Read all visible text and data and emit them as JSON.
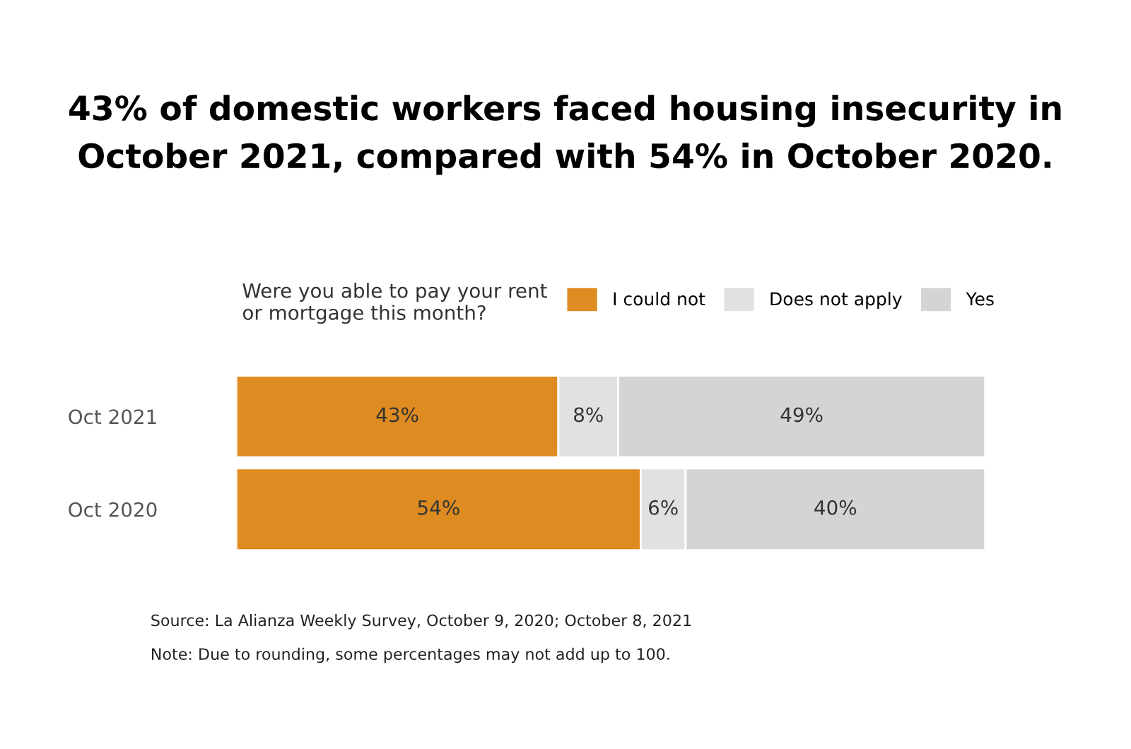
{
  "chart_data": {
    "type": "bar",
    "orientation": "horizontal",
    "stacked": true,
    "title": "43% of domestic workers faced housing insecurity in\nOctober 2021, compared with 54% in October 2020.",
    "legend_title": "Were you able to pay your rent\nor mortgage this month?",
    "categories": [
      "Oct 2021",
      "Oct 2020"
    ],
    "series": [
      {
        "name": "I could not",
        "color": "#de8b21",
        "values": [
          43,
          54
        ],
        "value_labels": [
          "43%",
          "54%"
        ]
      },
      {
        "name": "Does not apply",
        "color": "#e1e1e1",
        "values": [
          8,
          6
        ],
        "value_labels": [
          "8%",
          "6%"
        ]
      },
      {
        "name": "Yes",
        "color": "#d4d4d4",
        "values": [
          49,
          40
        ],
        "value_labels": [
          "49%",
          "40%"
        ]
      }
    ],
    "tick_labels": "y",
    "legend": "top",
    "grid": false,
    "annotations": [
      "Source: La Alianza Weekly Survey, October 9, 2020; October 8, 2021",
      "Note: Due to rounding, some percentages may not add up to 100."
    ]
  }
}
